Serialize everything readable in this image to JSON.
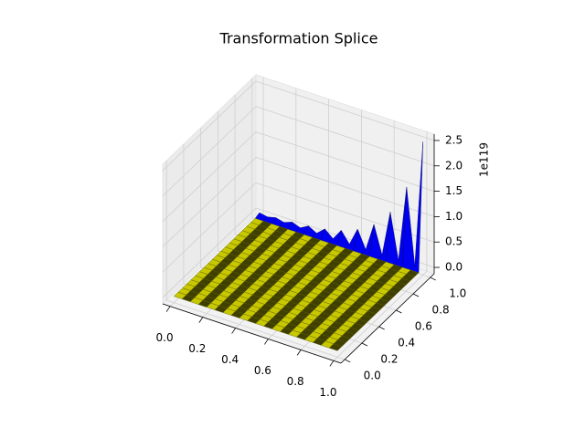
{
  "chart_data": {
    "type": "surface3d",
    "title": "Transformation Splice",
    "x": [
      0,
      0.05,
      0.1,
      0.15,
      0.2,
      0.25,
      0.3,
      0.35,
      0.4,
      0.45,
      0.5,
      0.55,
      0.6,
      0.65,
      0.7,
      0.75,
      0.8,
      0.85,
      0.9,
      0.95,
      1
    ],
    "y": [
      0,
      0.05,
      0.1,
      0.15,
      0.2,
      0.25,
      0.3,
      0.35,
      0.4,
      0.45,
      0.5,
      0.55,
      0.6,
      0.65,
      0.7,
      0.75,
      0.8,
      0.85,
      0.9,
      0.95,
      1
    ],
    "z": [
      [
        0,
        0,
        0,
        0,
        0,
        0,
        0,
        0,
        0,
        0,
        0,
        0,
        0,
        0,
        0,
        0,
        0,
        0,
        0,
        0,
        0
      ],
      [
        0,
        0,
        0,
        0,
        0,
        0,
        0,
        0,
        0,
        0,
        0,
        0,
        0,
        0,
        0,
        0,
        0,
        0,
        0,
        0,
        0
      ],
      [
        0,
        0,
        0,
        0,
        0,
        0,
        0,
        0,
        0,
        0,
        0,
        0,
        0,
        0,
        0,
        0,
        0,
        0,
        0,
        0,
        0
      ],
      [
        0,
        0,
        0,
        0,
        0,
        0,
        0,
        0,
        0,
        0,
        0,
        0,
        0,
        0,
        0,
        0,
        0,
        0,
        0,
        0,
        0
      ],
      [
        0,
        0,
        0,
        0,
        0,
        0,
        0,
        0,
        0,
        0,
        0,
        0,
        0,
        0,
        0,
        0,
        0,
        0,
        0,
        0,
        0
      ],
      [
        0,
        0,
        0,
        0,
        0,
        0,
        0,
        0,
        0,
        0,
        0,
        0,
        0,
        0,
        0,
        0,
        0,
        0,
        0,
        0,
        0
      ],
      [
        0,
        0,
        0,
        0,
        0,
        0,
        0,
        0,
        0,
        0,
        0,
        0,
        0,
        0,
        0,
        0,
        0,
        0,
        0,
        0,
        0
      ],
      [
        0,
        0,
        0,
        0,
        0,
        0,
        0,
        0,
        0,
        0,
        0,
        0,
        0,
        0,
        0,
        0,
        0,
        0,
        0,
        0,
        0
      ],
      [
        0,
        0,
        0,
        0,
        0,
        0,
        0,
        0,
        0,
        0,
        0,
        0,
        0,
        0,
        0,
        0,
        0,
        0,
        0,
        0,
        0
      ],
      [
        0,
        0,
        0,
        0,
        0,
        0,
        0,
        0,
        0,
        0,
        0,
        0,
        0,
        0,
        0,
        0,
        0,
        0,
        0,
        0,
        0
      ],
      [
        0,
        0,
        0,
        0,
        0,
        0,
        0,
        0,
        0,
        0,
        0,
        0,
        0,
        0,
        0,
        0,
        0,
        0,
        0,
        0,
        0
      ],
      [
        0,
        0,
        0,
        0,
        0,
        0,
        0,
        0,
        0,
        0,
        0,
        0,
        0,
        0,
        0,
        0,
        0,
        0,
        0,
        0,
        0
      ],
      [
        0,
        0,
        0,
        0,
        0,
        0,
        0,
        0,
        0,
        0,
        0,
        0,
        0,
        0,
        0,
        0,
        0,
        0,
        0,
        0,
        0
      ],
      [
        0,
        0,
        0,
        0,
        0,
        0,
        0,
        0,
        0,
        0,
        0,
        0,
        0,
        0,
        0,
        0,
        0,
        0,
        0,
        0,
        0
      ],
      [
        0,
        0,
        0,
        0,
        0,
        0,
        0,
        0,
        0,
        0,
        0,
        0,
        0,
        0,
        0,
        0,
        0,
        0,
        0,
        0,
        0
      ],
      [
        0,
        0,
        0,
        0,
        0,
        0,
        0,
        0,
        0,
        0,
        0,
        0,
        0,
        0,
        0,
        0,
        0,
        0,
        0,
        0,
        0
      ],
      [
        0,
        0,
        0,
        0,
        0,
        0,
        0,
        0,
        0,
        0,
        0,
        0,
        0,
        0,
        0,
        0,
        0,
        0,
        0,
        0,
        0
      ],
      [
        0,
        0,
        0,
        0,
        0,
        0,
        0,
        0,
        0,
        0,
        0,
        0,
        0,
        0,
        0,
        0,
        0,
        0,
        0,
        0,
        0
      ],
      [
        0,
        0,
        0,
        0,
        0,
        0,
        0,
        0,
        0,
        0,
        0,
        0,
        0,
        0,
        0,
        0,
        0,
        0,
        0,
        0,
        0
      ],
      [
        0,
        0,
        0,
        0,
        0,
        0,
        0,
        0,
        0,
        0,
        0,
        0,
        0,
        0,
        0,
        0,
        0,
        0,
        0,
        0,
        0
      ],
      [
        0.03,
        0,
        0.04,
        0,
        0.06,
        0,
        0.09,
        0,
        0.14,
        0,
        0.22,
        0,
        0.35,
        0,
        0.55,
        0,
        0.9,
        0,
        1.5,
        0,
        2.5
      ]
    ],
    "face_colors": [
      "#c8c800",
      "#3f3f00"
    ],
    "edge_row_color": "#0000f0",
    "xlim": [
      -0.045,
      1.045
    ],
    "ylim": [
      -0.045,
      1.045
    ],
    "zlim": [
      -0.125,
      2.625
    ],
    "xticks": [
      {
        "value": 0,
        "label": "0.0"
      },
      {
        "value": 0.2,
        "label": "0.2"
      },
      {
        "value": 0.4,
        "label": "0.4"
      },
      {
        "value": 0.6,
        "label": "0.6"
      },
      {
        "value": 0.8,
        "label": "0.8"
      },
      {
        "value": 1,
        "label": "1.0"
      }
    ],
    "yticks": [
      {
        "value": 0,
        "label": "0.0"
      },
      {
        "value": 0.2,
        "label": "0.2"
      },
      {
        "value": 0.4,
        "label": "0.4"
      },
      {
        "value": 0.6,
        "label": "0.6"
      },
      {
        "value": 0.8,
        "label": "0.8"
      },
      {
        "value": 1,
        "label": "1.0"
      }
    ],
    "zticks": [
      {
        "value": 0,
        "label": "0.0"
      },
      {
        "value": 0.5,
        "label": "0.5"
      },
      {
        "value": 1,
        "label": "1.0"
      },
      {
        "value": 1.5,
        "label": "1.5"
      },
      {
        "value": 2,
        "label": "2.0"
      },
      {
        "value": 2.5,
        "label": "2.5"
      }
    ],
    "z_offset_label": "1e119",
    "grid": true
  }
}
